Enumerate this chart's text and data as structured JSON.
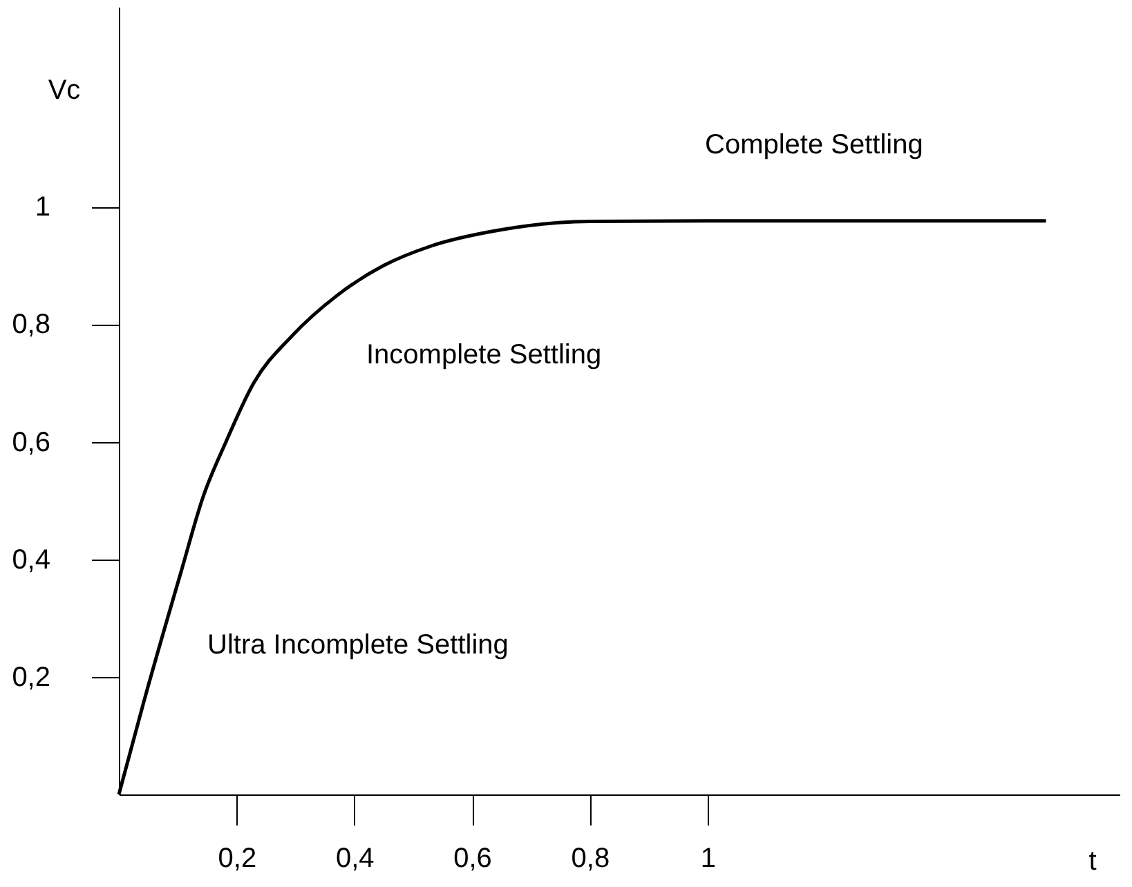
{
  "chart_data": {
    "type": "line",
    "xlabel": "t",
    "ylabel": "Vc",
    "series": [
      {
        "color": "#000000",
        "x": [
          0,
          0.043,
          0.106,
          0.143,
          0.182,
          0.229,
          0.294,
          0.372,
          0.45,
          0.53,
          0.645,
          0.8,
          1.0,
          1.2,
          1.575
        ],
        "values": [
          0,
          0.16,
          0.38,
          0.506,
          0.6,
          0.7,
          0.78,
          0.85,
          0.9,
          0.933,
          0.96,
          0.975,
          0.976,
          0.976,
          0.976
        ]
      }
    ],
    "xlim": [
      0,
      1.7
    ],
    "ylim": [
      0,
      1.34
    ],
    "xticks": [
      {
        "value": 0.2,
        "label": "0,2"
      },
      {
        "value": 0.4,
        "label": "0,4"
      },
      {
        "value": 0.6,
        "label": "0,6"
      },
      {
        "value": 0.8,
        "label": "0,8"
      },
      1
    ],
    "yticks": [
      {
        "value": 0.2,
        "label": "0,2"
      },
      {
        "value": 0.4,
        "label": "0,4"
      },
      {
        "value": 0.6,
        "label": "0,6"
      },
      {
        "value": 0.8,
        "label": "0,8"
      },
      1
    ],
    "annotations": [
      "Complete Settling",
      "Incomplete Settling",
      "Ultra Incomplete Settling"
    ],
    "grid": false,
    "marker": "none",
    "line_style": "solid"
  }
}
